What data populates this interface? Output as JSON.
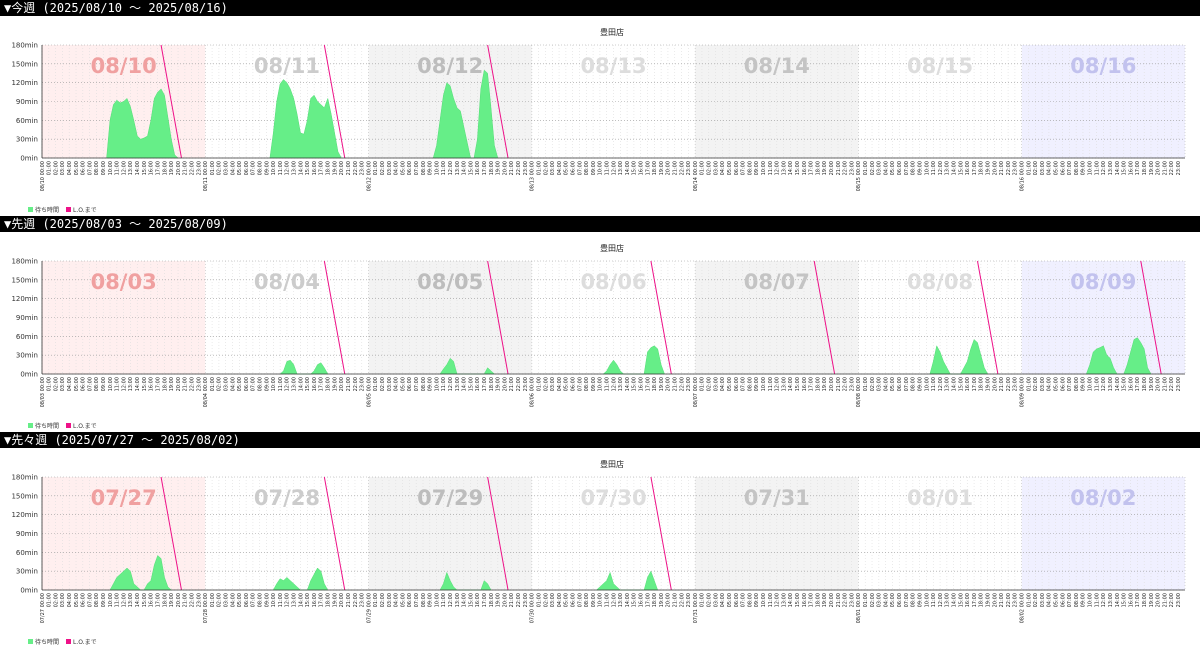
{
  "weeks": [
    {
      "heading": "▼今週 (2025/08/10 〜 2025/08/16)",
      "chart_data": {
        "type": "area",
        "title": "豊田店",
        "y_unit": "min",
        "yticks": [
          0,
          30,
          60,
          90,
          120,
          150,
          180
        ],
        "ylim": [
          0,
          180
        ],
        "day_labels": [
          "08/10",
          "08/11",
          "08/12",
          "08/13",
          "08/14",
          "08/15",
          "08/16"
        ],
        "day_colors": [
          "#ffe4e4",
          "#ffffff",
          "#ebebeb",
          "#ffffff",
          "#ebebeb",
          "#ffffff",
          "#e6e6ff"
        ],
        "day_label_colors": [
          "#f0a0a0",
          "#cccccc",
          "#bdbdbd",
          "#dddddd",
          "#c4c4c4",
          "#dddddd",
          "#c2c2ee"
        ],
        "date_ticks": [
          "08/10 00:00",
          "08/11 00:00",
          "08/12 00:00",
          "08/13 00:00",
          "08/14 00:00",
          "08/15 00:00",
          "08/16 00:00"
        ],
        "hour_labels": [
          "00:00",
          "01:00",
          "02:00",
          "03:00",
          "04:00",
          "05:00",
          "06:00",
          "07:00",
          "08:00",
          "09:00",
          "10:00",
          "11:00",
          "12:00",
          "13:00",
          "14:00",
          "15:00",
          "16:00",
          "17:00",
          "18:00",
          "19:00",
          "20:00",
          "21:00",
          "22:00",
          "23:00"
        ],
        "legend": [
          {
            "name": "待ち時間",
            "color": "#66ee88"
          },
          {
            "name": "L.O.まで",
            "color": "#ee1188"
          }
        ],
        "series": [
          {
            "name": "待ち時間",
            "day": 0,
            "x": [
              9.5,
              10,
              10.5,
              11,
              11.5,
              12,
              12.5,
              13,
              13.5,
              14,
              14.5,
              15,
              15.5,
              16,
              16.5,
              17,
              17.5,
              18,
              18.5,
              19,
              19.5,
              20
            ],
            "y": [
              0,
              60,
              85,
              92,
              88,
              90,
              95,
              82,
              60,
              35,
              30,
              32,
              35,
              60,
              95,
              105,
              110,
              100,
              65,
              30,
              5,
              0
            ]
          },
          {
            "name": "待ち時間",
            "day": 1,
            "x": [
              9.5,
              10,
              10.5,
              11,
              11.5,
              12,
              12.5,
              13,
              13.5,
              14,
              14.5,
              15,
              15.5,
              16,
              16.5,
              17,
              17.5,
              18,
              18.5,
              19,
              19.5,
              20
            ],
            "y": [
              0,
              40,
              90,
              118,
              125,
              120,
              110,
              95,
              70,
              40,
              38,
              60,
              95,
              100,
              90,
              85,
              80,
              95,
              70,
              40,
              10,
              0
            ]
          },
          {
            "name": "待ち時間",
            "day": 2,
            "x": [
              9.5,
              10,
              10.5,
              11,
              11.5,
              12,
              12.5,
              13,
              13.5,
              14,
              14.5,
              15,
              15.5,
              16,
              16.5,
              17,
              17.5,
              18,
              18.5,
              19
            ],
            "y": [
              0,
              20,
              60,
              100,
              120,
              115,
              95,
              80,
              75,
              50,
              25,
              0,
              0,
              30,
              110,
              140,
              135,
              80,
              20,
              0
            ]
          }
        ],
        "lo_lines": [
          {
            "day": 0,
            "from_hour": 17.5,
            "to_hour": 20.5
          },
          {
            "day": 1,
            "from_hour": 17.5,
            "to_hour": 20.5
          },
          {
            "day": 2,
            "from_hour": 17.5,
            "to_hour": 20.5
          }
        ]
      }
    },
    {
      "heading": "▼先週 (2025/08/03 〜 2025/08/09)",
      "chart_data": {
        "type": "area",
        "title": "豊田店",
        "y_unit": "min",
        "yticks": [
          0,
          30,
          60,
          90,
          120,
          150,
          180
        ],
        "ylim": [
          0,
          180
        ],
        "day_labels": [
          "08/03",
          "08/04",
          "08/05",
          "08/06",
          "08/07",
          "08/08",
          "08/09"
        ],
        "day_colors": [
          "#ffe4e4",
          "#ffffff",
          "#ebebeb",
          "#ffffff",
          "#ebebeb",
          "#ffffff",
          "#e6e6ff"
        ],
        "day_label_colors": [
          "#f0a0a0",
          "#cccccc",
          "#bdbdbd",
          "#dddddd",
          "#c4c4c4",
          "#dddddd",
          "#c2c2ee"
        ],
        "date_ticks": [
          "08/03 00:00",
          "08/04 00:00",
          "08/05 00:00",
          "08/06 00:00",
          "08/07 00:00",
          "08/08 00:00",
          "08/09 00:00"
        ],
        "hour_labels": [
          "00:00",
          "01:00",
          "02:00",
          "03:00",
          "04:00",
          "05:00",
          "06:00",
          "07:00",
          "08:00",
          "09:00",
          "10:00",
          "11:00",
          "12:00",
          "13:00",
          "14:00",
          "15:00",
          "16:00",
          "17:00",
          "18:00",
          "19:00",
          "20:00",
          "21:00",
          "22:00",
          "23:00"
        ],
        "legend": [
          {
            "name": "待ち時間",
            "color": "#66ee88"
          },
          {
            "name": "L.O.まで",
            "color": "#ee1188"
          }
        ],
        "series": [
          {
            "name": "待ち時間",
            "day": 1,
            "x": [
              11,
              11.5,
              12,
              12.5,
              13,
              13.5,
              14,
              14.5,
              15,
              15.5,
              16,
              16.5,
              17,
              17.5,
              18
            ],
            "y": [
              0,
              5,
              20,
              22,
              15,
              0,
              0,
              0,
              0,
              0,
              5,
              15,
              18,
              10,
              0
            ]
          },
          {
            "name": "待ち時間",
            "day": 2,
            "x": [
              10.5,
              11,
              11.5,
              12,
              12.5,
              13,
              13.5,
              17,
              17.5,
              18,
              18.5
            ],
            "y": [
              0,
              8,
              15,
              25,
              20,
              0,
              0,
              0,
              10,
              5,
              0
            ]
          },
          {
            "name": "待ち時間",
            "day": 3,
            "x": [
              10.5,
              11,
              11.5,
              12,
              12.5,
              13,
              13.5,
              16.5,
              17,
              17.5,
              18,
              18.5,
              19,
              19.5
            ],
            "y": [
              0,
              5,
              15,
              22,
              15,
              5,
              0,
              0,
              35,
              42,
              45,
              40,
              15,
              0
            ]
          },
          {
            "name": "待ち時間",
            "day": 5,
            "x": [
              10.5,
              11,
              11.5,
              12,
              12.5,
              13,
              13.5,
              15,
              15.5,
              16,
              16.5,
              17,
              17.5,
              18,
              18.5,
              19
            ],
            "y": [
              0,
              20,
              45,
              35,
              20,
              10,
              0,
              0,
              10,
              20,
              40,
              55,
              50,
              30,
              10,
              0
            ]
          },
          {
            "name": "待ち時間",
            "day": 6,
            "x": [
              9.5,
              10,
              10.5,
              11,
              11.5,
              12,
              12.5,
              13,
              13.5,
              14,
              15,
              15.5,
              16,
              16.5,
              17,
              17.5,
              18,
              18.5,
              19
            ],
            "y": [
              0,
              15,
              35,
              40,
              42,
              45,
              30,
              25,
              10,
              0,
              0,
              15,
              35,
              55,
              58,
              50,
              40,
              10,
              0
            ]
          }
        ],
        "lo_lines": [
          {
            "day": 1,
            "from_hour": 17.5,
            "to_hour": 20.5
          },
          {
            "day": 2,
            "from_hour": 17.5,
            "to_hour": 20.5
          },
          {
            "day": 3,
            "from_hour": 17.5,
            "to_hour": 20.5
          },
          {
            "day": 4,
            "from_hour": 17.5,
            "to_hour": 20.5
          },
          {
            "day": 5,
            "from_hour": 17.5,
            "to_hour": 20.5
          },
          {
            "day": 6,
            "from_hour": 17.5,
            "to_hour": 20.5
          }
        ]
      }
    },
    {
      "heading": "▼先々週 (2025/07/27 〜 2025/08/02)",
      "chart_data": {
        "type": "area",
        "title": "豊田店",
        "y_unit": "min",
        "yticks": [
          0,
          30,
          60,
          90,
          120,
          150,
          180
        ],
        "ylim": [
          0,
          180
        ],
        "day_labels": [
          "07/27",
          "07/28",
          "07/29",
          "07/30",
          "07/31",
          "08/01",
          "08/02"
        ],
        "day_colors": [
          "#ffe4e4",
          "#ffffff",
          "#ebebeb",
          "#ffffff",
          "#ebebeb",
          "#ffffff",
          "#e6e6ff"
        ],
        "day_label_colors": [
          "#f0a0a0",
          "#cccccc",
          "#bdbdbd",
          "#dddddd",
          "#c4c4c4",
          "#dddddd",
          "#c2c2ee"
        ],
        "date_ticks": [
          "07/27 00:00",
          "07/28 00:00",
          "07/29 00:00",
          "07/30 00:00",
          "07/31 00:00",
          "08/01 00:00",
          "08/02 00:00"
        ],
        "hour_labels": [
          "00:00",
          "01:00",
          "02:00",
          "03:00",
          "04:00",
          "05:00",
          "06:00",
          "07:00",
          "08:00",
          "09:00",
          "10:00",
          "11:00",
          "12:00",
          "13:00",
          "14:00",
          "15:00",
          "16:00",
          "17:00",
          "18:00",
          "19:00",
          "20:00",
          "21:00",
          "22:00",
          "23:00"
        ],
        "legend": [
          {
            "name": "待ち時間",
            "color": "#66ee88"
          },
          {
            "name": "L.O.まで",
            "color": "#ee1188"
          }
        ],
        "series": [
          {
            "name": "待ち時間",
            "day": 0,
            "x": [
              10,
              10.5,
              11,
              11.5,
              12,
              12.5,
              13,
              13.5,
              14,
              14.5,
              15,
              15.5,
              16,
              16.5,
              17,
              17.5,
              18,
              18.5,
              19
            ],
            "y": [
              0,
              10,
              20,
              25,
              30,
              35,
              30,
              10,
              5,
              0,
              0,
              10,
              15,
              40,
              55,
              50,
              20,
              5,
              0
            ]
          },
          {
            "name": "待ち時間",
            "day": 1,
            "x": [
              10,
              10.5,
              11,
              11.5,
              12,
              12.5,
              13,
              13.5,
              14,
              15,
              15.5,
              16,
              16.5,
              17,
              17.5,
              18
            ],
            "y": [
              0,
              10,
              18,
              15,
              20,
              15,
              10,
              5,
              0,
              0,
              15,
              25,
              35,
              30,
              10,
              0
            ]
          },
          {
            "name": "待ち時間",
            "day": 2,
            "x": [
              10.5,
              11,
              11.5,
              12,
              12.5,
              13,
              16.5,
              17,
              17.5,
              18
            ],
            "y": [
              0,
              10,
              28,
              15,
              5,
              0,
              0,
              15,
              10,
              0
            ]
          },
          {
            "name": "待ち時間",
            "day": 3,
            "x": [
              9.5,
              10,
              10.5,
              11,
              11.5,
              12,
              12.5,
              13,
              16.5,
              17,
              17.5,
              18,
              18.5
            ],
            "y": [
              0,
              5,
              10,
              15,
              28,
              10,
              5,
              0,
              0,
              20,
              30,
              15,
              0
            ]
          }
        ],
        "lo_lines": [
          {
            "day": 0,
            "from_hour": 17.5,
            "to_hour": 20.5
          },
          {
            "day": 1,
            "from_hour": 17.5,
            "to_hour": 20.5
          },
          {
            "day": 2,
            "from_hour": 17.5,
            "to_hour": 20.5
          },
          {
            "day": 3,
            "from_hour": 17.5,
            "to_hour": 20.5
          }
        ]
      }
    }
  ]
}
